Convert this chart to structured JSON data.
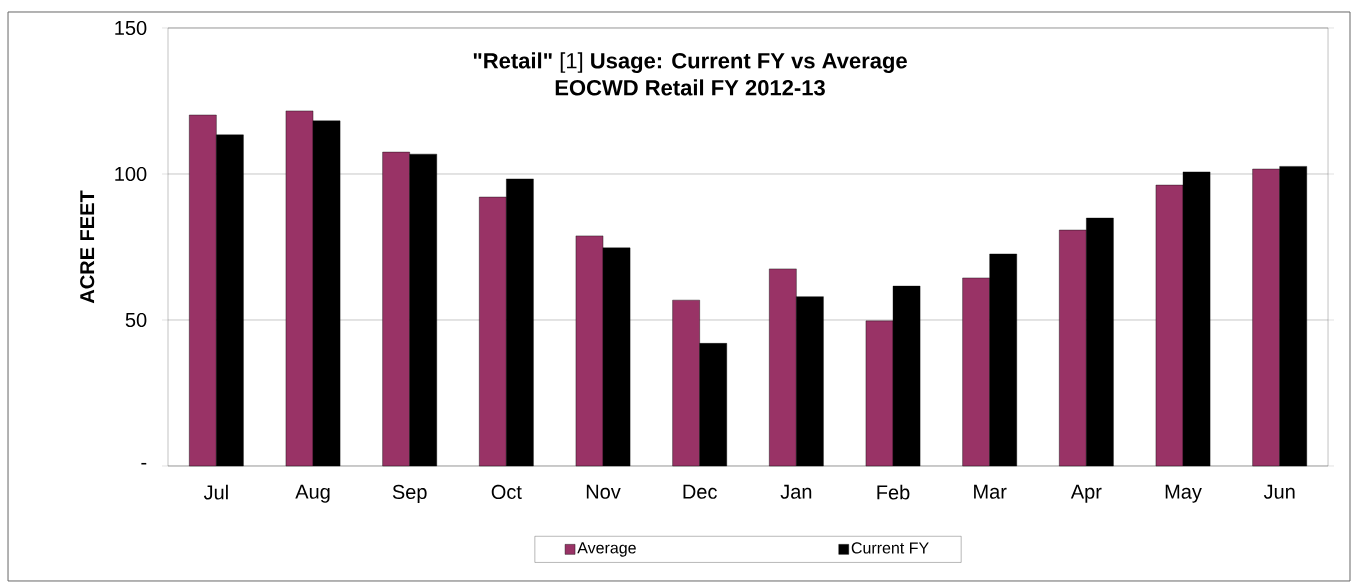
{
  "chart_data": {
    "type": "bar",
    "title": "**\"Retail\"** [1] **Usage:  Current FY vs Average**",
    "subtitle": "EOCWD Retail  FY 2012-13",
    "ylabel": "ACRE FEET",
    "categories": [
      "Jul",
      "Aug",
      "Sep",
      "Oct",
      "Nov",
      "Dec",
      "Jan",
      "Feb",
      "Mar",
      "Apr",
      "May",
      "Jun"
    ],
    "series": [
      {
        "name": "Average",
        "color": "#993366",
        "values": [
          120.2,
          121.6,
          107.5,
          92.1,
          78.8,
          56.8,
          67.5,
          49.7,
          64.4,
          80.8,
          96.2,
          101.7
        ]
      },
      {
        "name": "Current FY",
        "color": "#000000",
        "values": [
          113.4,
          118.2,
          106.8,
          98.3,
          74.7,
          42,
          58,
          61.6,
          72.6,
          84.9,
          100.7,
          102.6
        ]
      }
    ],
    "ylim": [
      0,
      150
    ],
    "yticks": [
      {
        "value": 0,
        "label": "-"
      },
      50,
      100,
      150
    ],
    "grid": "y",
    "legend": "bottom"
  }
}
